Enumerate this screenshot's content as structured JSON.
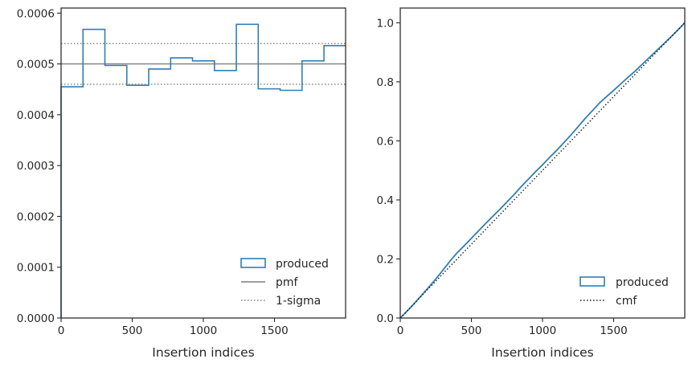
{
  "colors": {
    "produced": "#2f7fb4",
    "pmf": "#7f7f7f",
    "sigma": "#7f7f7f",
    "cmf": "#1a1a1a",
    "axes": "#262626"
  },
  "chart_data": [
    {
      "type": "line",
      "subtype": "step-histogram",
      "xlabel": "Insertion indices",
      "ylabel": "",
      "xlim": [
        0,
        2000
      ],
      "ylim": [
        0,
        0.00061
      ],
      "xticks": [
        0,
        500,
        1000,
        1500
      ],
      "xtick_labels": [
        "0",
        "500",
        "1000",
        "1500"
      ],
      "yticks": [
        0,
        0.0001,
        0.0002,
        0.0003,
        0.0004,
        0.0005,
        0.0006
      ],
      "ytick_labels": [
        "0.0000",
        "0.0001",
        "0.0002",
        "0.0003",
        "0.0004",
        "0.0005",
        "0.0006"
      ],
      "grid": false,
      "legend": {
        "placement": "lower-right",
        "entries": [
          {
            "label": "produced",
            "style": "box"
          },
          {
            "label": "pmf",
            "style": "solid"
          },
          {
            "label": "1-sigma",
            "style": "dotted"
          }
        ]
      },
      "series": [
        {
          "name": "produced",
          "bin_edges": [
            0,
            154,
            308,
            462,
            616,
            770,
            924,
            1078,
            1232,
            1386,
            1540,
            1694,
            1848,
            2000
          ],
          "values": [
            0.000455,
            0.000568,
            0.000497,
            0.000458,
            0.00049,
            0.000512,
            0.000506,
            0.000487,
            0.000578,
            0.000451,
            0.000448,
            0.000506,
            0.000536
          ]
        },
        {
          "name": "pmf",
          "value": 0.0005
        },
        {
          "name": "1-sigma",
          "values": [
            0.00046,
            0.00054
          ]
        }
      ]
    },
    {
      "type": "line",
      "subtype": "cumulative",
      "xlabel": "Insertion indices",
      "ylabel": "",
      "xlim": [
        0,
        2000
      ],
      "ylim": [
        0,
        1.05
      ],
      "xticks": [
        0,
        500,
        1000,
        1500
      ],
      "xtick_labels": [
        "0",
        "500",
        "1000",
        "1500"
      ],
      "yticks": [
        0,
        0.2,
        0.4,
        0.6,
        0.8,
        1.0
      ],
      "ytick_labels": [
        "0.0",
        "0.2",
        "0.4",
        "0.6",
        "0.8",
        "1.0"
      ],
      "grid": false,
      "legend": {
        "placement": "lower-right",
        "entries": [
          {
            "label": "produced",
            "style": "box"
          },
          {
            "label": "cmf",
            "style": "dotted"
          }
        ]
      },
      "series": [
        {
          "name": "produced",
          "x": [
            0,
            50,
            100,
            150,
            200,
            250,
            300,
            350,
            400,
            450,
            500,
            550,
            600,
            650,
            700,
            750,
            800,
            850,
            900,
            950,
            1000,
            1050,
            1100,
            1150,
            1200,
            1250,
            1300,
            1350,
            1400,
            1450,
            1500,
            1550,
            1600,
            1650,
            1700,
            1750,
            1800,
            1850,
            1900,
            1950,
            2000
          ],
          "y": [
            0,
            0.024,
            0.05,
            0.077,
            0.104,
            0.132,
            0.162,
            0.193,
            0.221,
            0.245,
            0.27,
            0.295,
            0.32,
            0.344,
            0.368,
            0.393,
            0.418,
            0.445,
            0.47,
            0.495,
            0.519,
            0.544,
            0.568,
            0.594,
            0.62,
            0.648,
            0.676,
            0.702,
            0.728,
            0.75,
            0.771,
            0.793,
            0.815,
            0.836,
            0.859,
            0.882,
            0.905,
            0.928,
            0.951,
            0.975,
            1.0
          ]
        },
        {
          "name": "cmf",
          "x": [
            0,
            2000
          ],
          "y": [
            0,
            1.0
          ]
        }
      ]
    }
  ]
}
